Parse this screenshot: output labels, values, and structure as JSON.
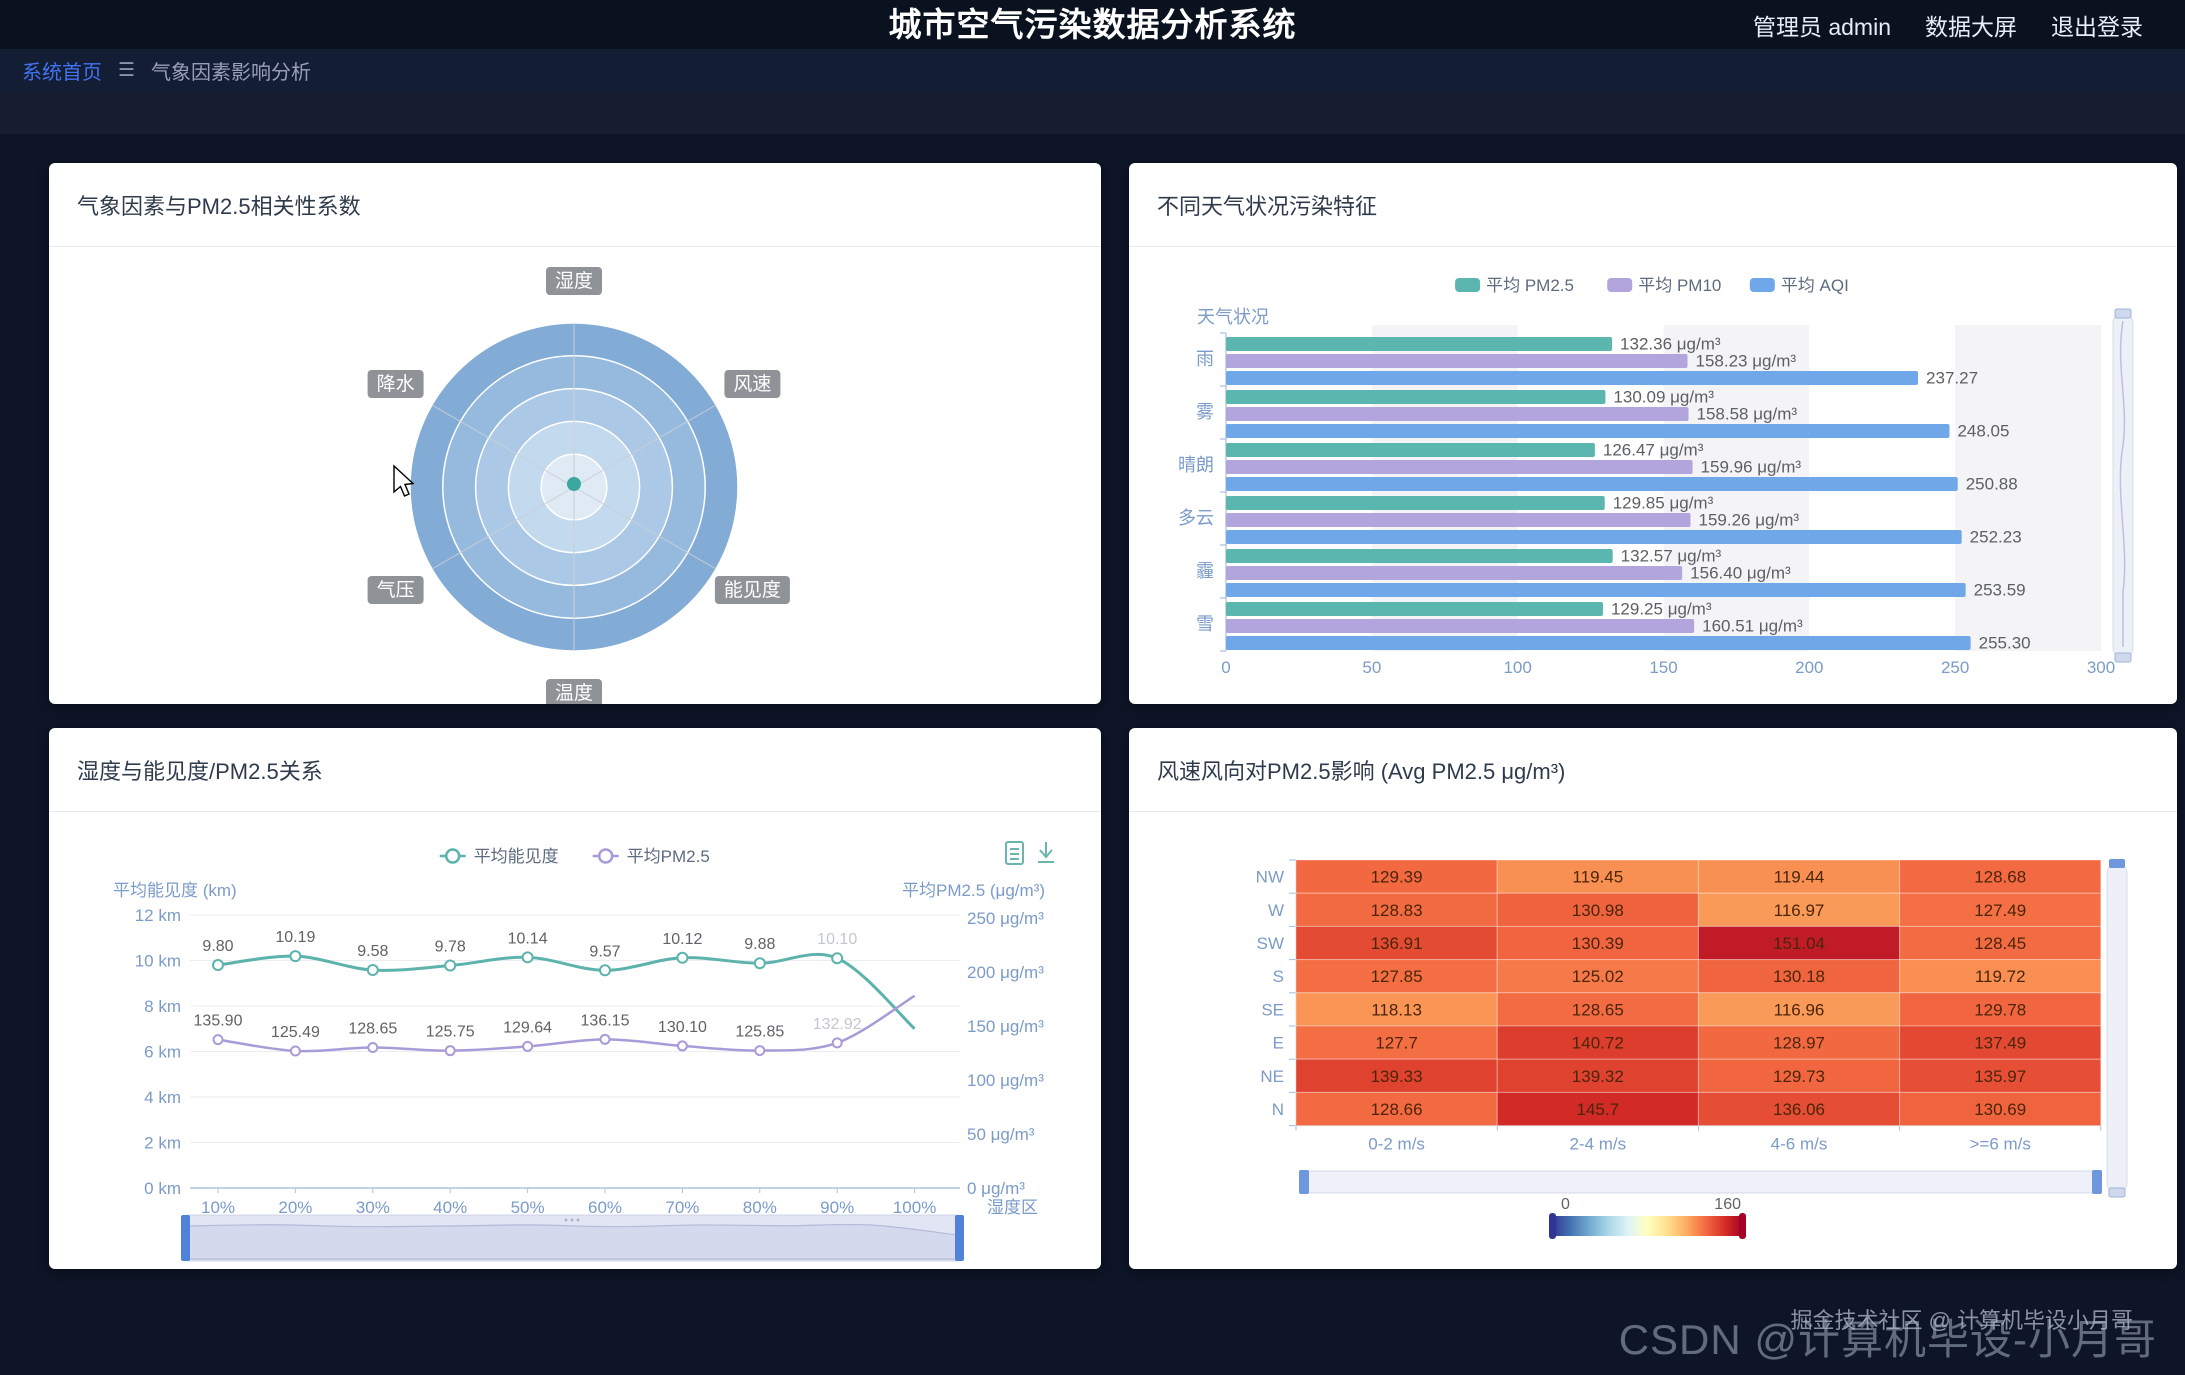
{
  "header": {
    "title": "城市空气污染数据分析系统",
    "admin": "管理员 admin",
    "screen_link": "数据大屏",
    "logout_link": "退出登录"
  },
  "breadcrumb": {
    "home": "系统首页",
    "current": "气象因素影响分析"
  },
  "watermarks": {
    "juejin": "掘金技术社区 @ 计算机毕设小月哥",
    "csdn": "CSDN @计算机毕设-小月哥"
  },
  "chart_data": [
    {
      "type": "radar",
      "title": "气象因素与PM2.5相关性系数",
      "indicators": [
        "湿度",
        "风速",
        "能见度",
        "温度",
        "气压",
        "降水"
      ],
      "series": [
        {
          "name": "相关性系数",
          "values": [
            0,
            0,
            0,
            0,
            0,
            0
          ]
        }
      ],
      "ring_colors": [
        "#82abd6",
        "#96b9de",
        "#abc8e6",
        "#c3d9ee",
        "#dfeaf5"
      ],
      "spoke_color": "#c9cfd8",
      "label_chip_color": "rgba(105,110,116,0.75)",
      "point_color": "#3aa89e"
    },
    {
      "type": "bar",
      "title": "不同天气状况污染特征",
      "orientation": "horizontal",
      "ylabel": "天气状况",
      "categories": [
        "雨",
        "雾",
        "晴朗",
        "多云",
        "霾",
        "雪"
      ],
      "series": [
        {
          "name": "平均 PM2.5",
          "color": "#5ab6af",
          "unit": "μg/m³",
          "values": [
            132.36,
            130.09,
            126.47,
            129.85,
            132.57,
            129.25
          ]
        },
        {
          "name": "平均 PM10",
          "color": "#b2a4dc",
          "unit": "μg/m³",
          "values": [
            158.23,
            158.58,
            159.96,
            159.26,
            156.4,
            160.51
          ]
        },
        {
          "name": "平均 AQI",
          "color": "#6fa7e8",
          "unit": "",
          "values": [
            237.27,
            248.05,
            250.88,
            252.23,
            253.59,
            255.3
          ]
        }
      ],
      "xlim": [
        0,
        300
      ],
      "xticks": [
        0,
        50,
        100,
        150,
        200,
        250,
        300
      ],
      "axis_color": "#7b9bc8",
      "label_color": "#5c6066",
      "grid": "split-area-stripes"
    },
    {
      "type": "line",
      "title": "湿度与能见度/PM2.5关系",
      "x_categories": [
        "10%",
        "20%",
        "30%",
        "40%",
        "50%",
        "60%",
        "70%",
        "80%",
        "90%",
        "100%"
      ],
      "xlabel": "湿度区",
      "left_axis": {
        "name": "平均能见度 (km)",
        "min": 0,
        "max": 12,
        "ticks": [
          "12 km",
          "10 km",
          "8 km",
          "6 km",
          "4 km",
          "2 km",
          "0 km"
        ]
      },
      "right_axis": {
        "name": "平均PM2.5 (μg/m³)",
        "min": 0,
        "max": 250,
        "ticks": [
          "250 μg/m³",
          "200 μg/m³",
          "150 μg/m³",
          "100 μg/m³",
          "50 μg/m³",
          "0 μg/m³"
        ]
      },
      "series": [
        {
          "name": "平均能见度",
          "color": "#5cb3ac",
          "axis": "left",
          "values": [
            9.8,
            10.19,
            9.58,
            9.78,
            10.14,
            9.57,
            10.12,
            9.88,
            10.1,
            7.0
          ],
          "labels": [
            "9.80",
            "10.19",
            "9.58",
            "9.78",
            "10.14",
            "9.57",
            "10.12",
            "9.88",
            "10.10",
            ""
          ]
        },
        {
          "name": "平均PM2.5",
          "color": "#a79cd8",
          "axis": "right",
          "values": [
            135.9,
            125.49,
            128.65,
            125.75,
            129.64,
            136.15,
            130.1,
            125.85,
            132.92,
            176
          ],
          "labels": [
            "135.90",
            "125.49",
            "128.65",
            "125.75",
            "129.64",
            "136.15",
            "130.10",
            "125.85",
            "132.92",
            ""
          ]
        }
      ],
      "label_fade_index": 8,
      "axis_color": "#7b9bc8",
      "label_color": "#606266",
      "faded_label_color": "#c3c7cf",
      "toolbox": [
        "data-view",
        "download"
      ],
      "datazoom": true
    },
    {
      "type": "heatmap",
      "title": "风速风向对PM2.5影响 (Avg PM2.5 μg/m³)",
      "rows": [
        "NW",
        "W",
        "SW",
        "S",
        "SE",
        "E",
        "NE",
        "N"
      ],
      "columns": [
        "0-2 m/s",
        "2-4 m/s",
        "4-6 m/s",
        ">=6 m/s"
      ],
      "values": [
        [
          129.39,
          119.45,
          119.44,
          128.68
        ],
        [
          128.83,
          130.98,
          116.97,
          127.49
        ],
        [
          136.91,
          130.39,
          151.04,
          128.45
        ],
        [
          127.85,
          125.02,
          130.18,
          119.72
        ],
        [
          118.13,
          128.65,
          116.96,
          129.78
        ],
        [
          127.7,
          140.72,
          128.97,
          137.49
        ],
        [
          139.33,
          139.32,
          129.73,
          135.97
        ],
        [
          128.66,
          145.7,
          136.06,
          130.69
        ]
      ],
      "visual_map": {
        "min": 0,
        "max": 160,
        "gradient": [
          "#313695",
          "#4575b4",
          "#74add1",
          "#abd9e9",
          "#e0f3f8",
          "#ffffbf",
          "#fee090",
          "#fdae61",
          "#f46d43",
          "#d73027",
          "#a50026"
        ]
      },
      "axis_color": "#7b9bc8",
      "cell_text_color": "#4b2508"
    }
  ]
}
